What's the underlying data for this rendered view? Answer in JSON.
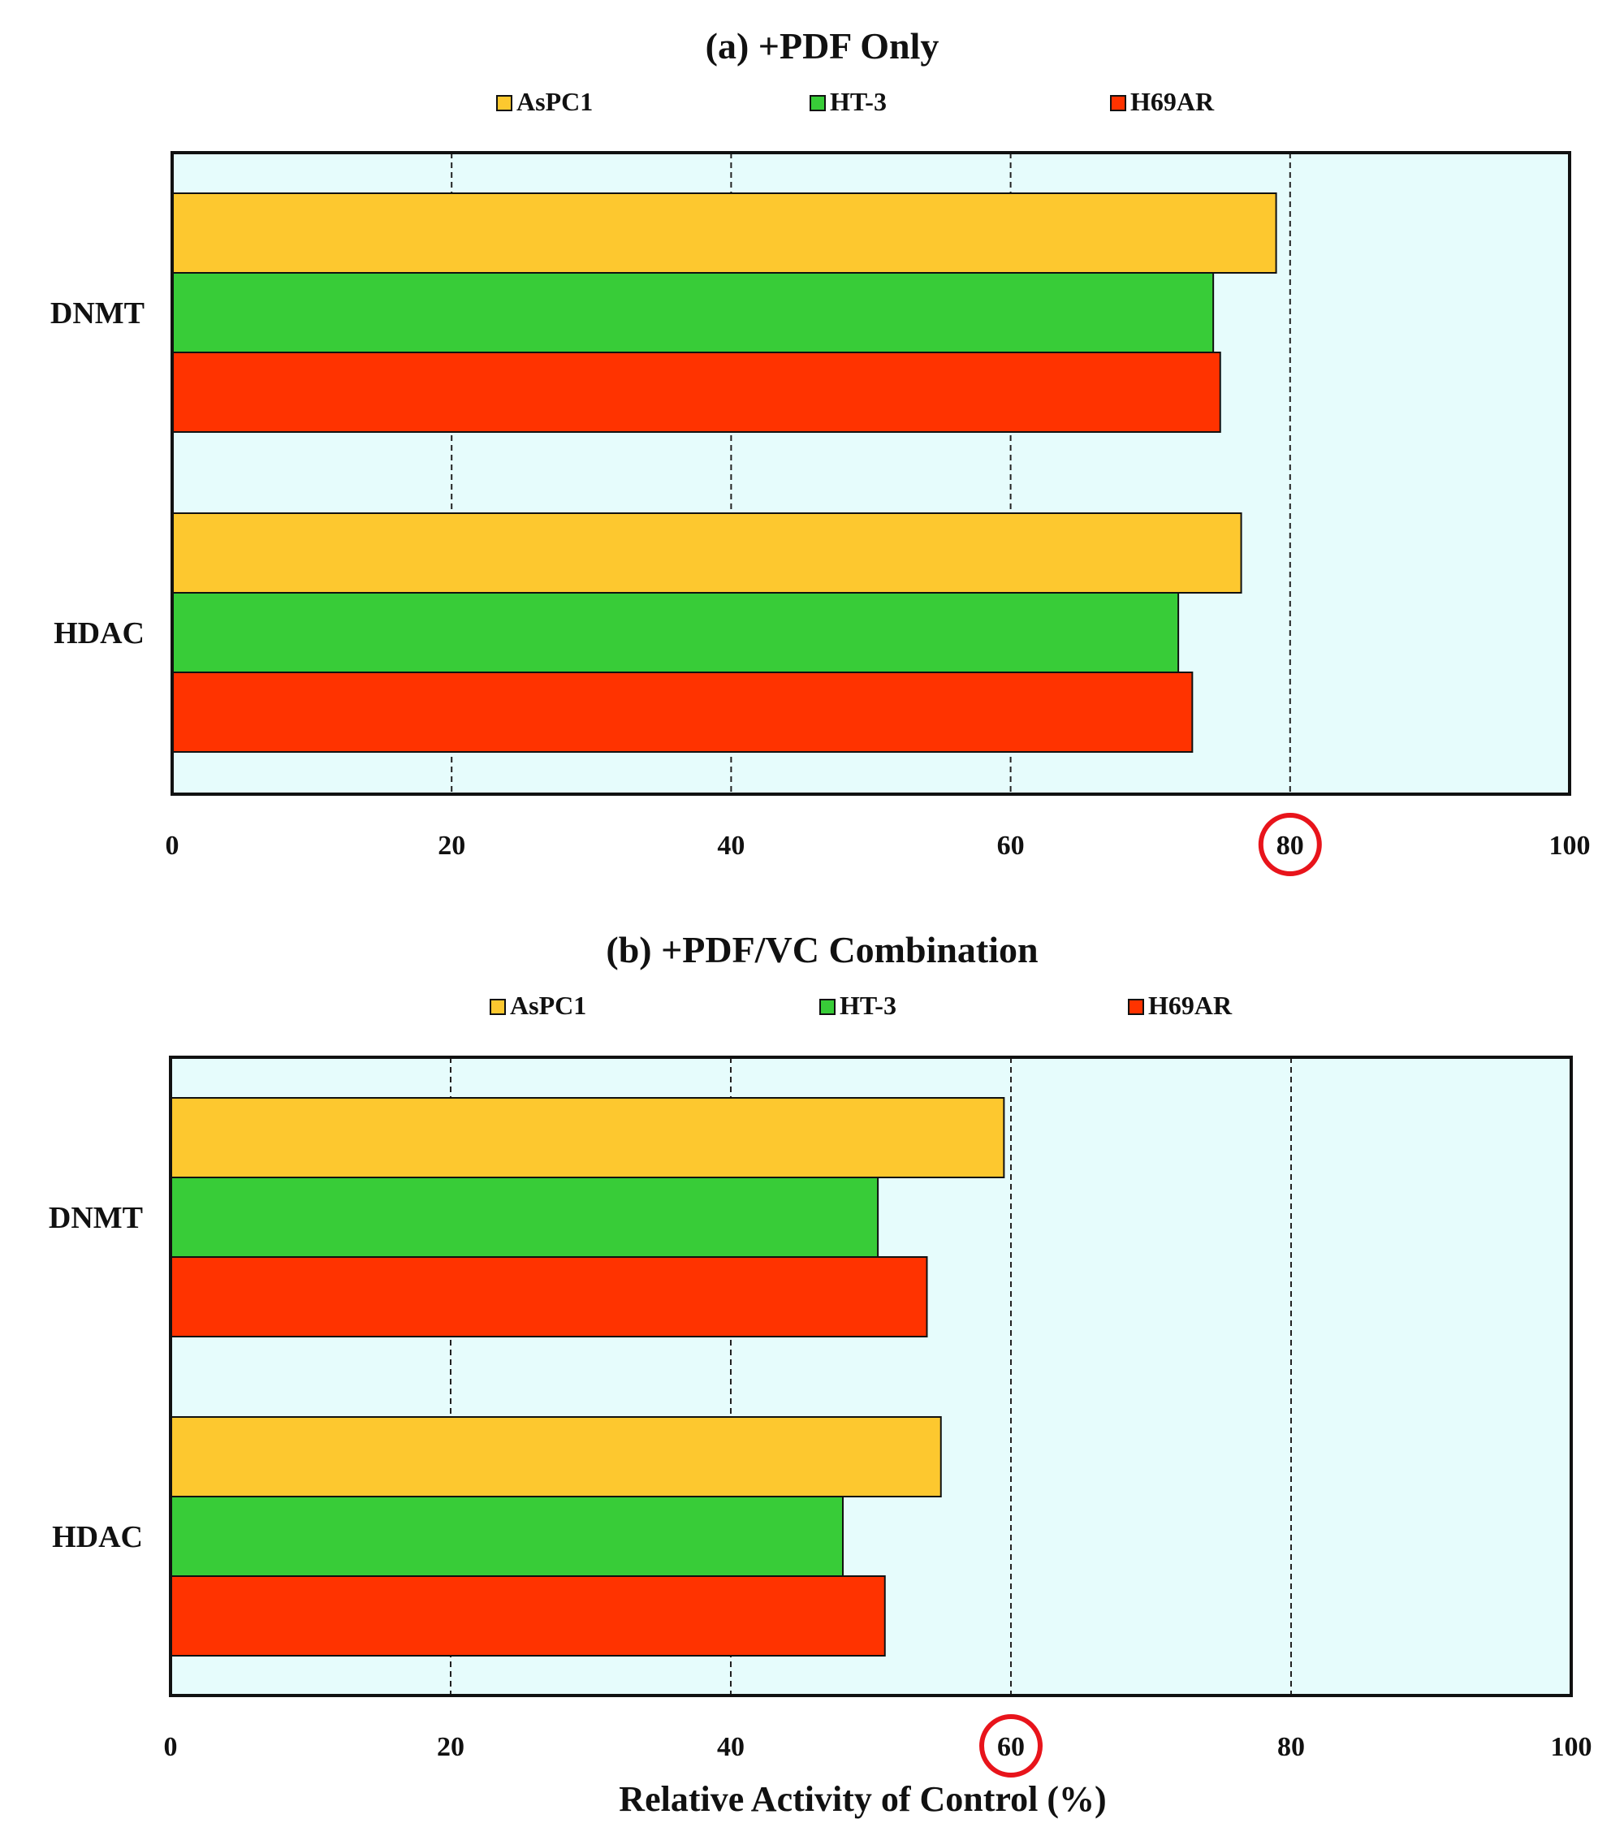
{
  "chart_data": [
    {
      "type": "bar",
      "orientation": "horizontal",
      "title": "(a) +PDF Only",
      "categories": [
        "DNMT",
        "HDAC"
      ],
      "series": [
        {
          "name": "AsPC1",
          "color": "#FDC82F",
          "values": [
            79,
            76.5
          ]
        },
        {
          "name": "HT-3",
          "color": "#38CC38",
          "values": [
            74.5,
            72
          ]
        },
        {
          "name": "H69AR",
          "color": "#FF3300",
          "values": [
            75,
            73
          ]
        }
      ],
      "xlim": [
        0,
        100
      ],
      "xticks": [
        "0",
        "20",
        "40",
        "60",
        "80",
        "100"
      ],
      "xlabel": "",
      "highlighted_tick": "80",
      "grid": "vertical dashed",
      "legend": "top",
      "plot_background": "#E6FCFC"
    },
    {
      "type": "bar",
      "orientation": "horizontal",
      "title": "(b) +PDF/VC Combination",
      "categories": [
        "DNMT",
        "HDAC"
      ],
      "series": [
        {
          "name": "AsPC1",
          "color": "#FDC82F",
          "values": [
            59.5,
            55
          ]
        },
        {
          "name": "HT-3",
          "color": "#38CC38",
          "values": [
            50.5,
            48
          ]
        },
        {
          "name": "H69AR",
          "color": "#FF3300",
          "values": [
            54,
            51
          ]
        }
      ],
      "xlim": [
        0,
        100
      ],
      "xticks": [
        "0",
        "20",
        "40",
        "60",
        "80",
        "100"
      ],
      "xlabel": "Relative Activity of Control (%)",
      "highlighted_tick": "60",
      "grid": "vertical dashed",
      "legend": "top",
      "plot_background": "#E6FCFC"
    }
  ]
}
